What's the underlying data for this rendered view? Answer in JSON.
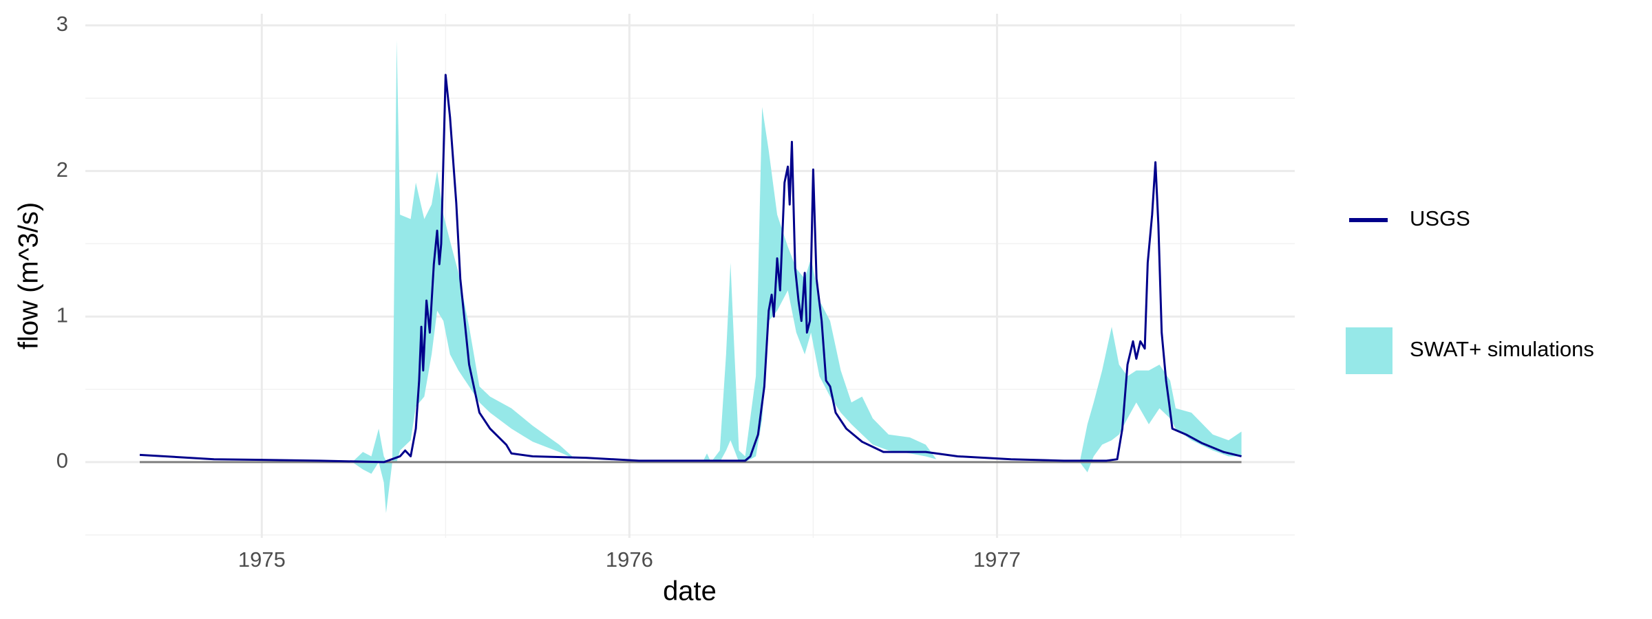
{
  "chart_data": {
    "type": "line",
    "x_label": "date",
    "y_label": "flow (m^3/s)",
    "xlim": [
      1974.52,
      1977.81
    ],
    "ylim": [
      -0.52,
      3.08
    ],
    "xticks": [
      1975,
      1976,
      1977
    ],
    "yticks": [
      0,
      1,
      2,
      3
    ],
    "x_minor_grid": [
      1975.5,
      1976.5,
      1977.5
    ],
    "y_minor_grid": [
      -0.5,
      0.5,
      1.5,
      2.5
    ],
    "grid": true,
    "hline": {
      "value": 0,
      "color": "#7f7f7f"
    },
    "legend": "right",
    "series": [
      {
        "name": "SWAT+ simulations",
        "kind": "ribbon",
        "color": "#96e8e8",
        "x": [
          1974.668,
          1975.246,
          1975.275,
          1975.298,
          1975.318,
          1975.332,
          1975.338,
          1975.355,
          1975.367,
          1975.376,
          1975.405,
          1975.419,
          1975.442,
          1975.462,
          1975.477,
          1975.494,
          1975.512,
          1975.535,
          1975.564,
          1975.592,
          1975.621,
          1975.679,
          1975.737,
          1975.809,
          1975.853,
          1976.199,
          1976.211,
          1976.222,
          1976.246,
          1976.263,
          1976.275,
          1976.286,
          1976.298,
          1976.315,
          1976.344,
          1976.361,
          1976.379,
          1976.402,
          1976.431,
          1976.454,
          1976.477,
          1976.494,
          1976.517,
          1976.546,
          1976.575,
          1976.604,
          1976.633,
          1976.662,
          1976.705,
          1976.763,
          1976.806,
          1976.835,
          1977.225,
          1977.246,
          1977.263,
          1977.286,
          1977.312,
          1977.332,
          1977.355,
          1977.379,
          1977.413,
          1977.442,
          1977.471,
          1977.486,
          1977.529,
          1977.587,
          1977.63,
          1977.665
        ],
        "lower": [
          0,
          0,
          -0.05,
          -0.08,
          0,
          -0.14,
          -0.35,
          0,
          0,
          0.08,
          0.15,
          0.38,
          0.45,
          0.74,
          1.04,
          0.97,
          0.74,
          0.63,
          0.52,
          0.41,
          0.34,
          0.23,
          0.14,
          0.07,
          0.02,
          0,
          0,
          0,
          0,
          0.08,
          0.15,
          0.08,
          0,
          0,
          0.04,
          0.29,
          0.97,
          1.04,
          1.18,
          0.89,
          0.74,
          0.89,
          0.59,
          0.45,
          0.34,
          0.26,
          0.19,
          0.12,
          0.08,
          0.06,
          0.04,
          0.02,
          0,
          -0.07,
          0.04,
          0.12,
          0.15,
          0.19,
          0.3,
          0.41,
          0.26,
          0.37,
          0.3,
          0.23,
          0.15,
          0.08,
          0.04,
          0.04
        ],
        "upper": [
          0,
          0,
          0.07,
          0.04,
          0.23,
          0.04,
          0.01,
          0,
          2.9,
          1.7,
          1.67,
          1.92,
          1.67,
          1.77,
          2.0,
          1.7,
          1.52,
          1.3,
          0.93,
          0.52,
          0.45,
          0.37,
          0.25,
          0.12,
          0.02,
          0,
          0.06,
          0,
          0.08,
          0.74,
          1.37,
          0.74,
          0.08,
          0.04,
          0.59,
          2.44,
          2.14,
          1.7,
          1.48,
          1.33,
          1.26,
          1.4,
          1.11,
          0.97,
          0.63,
          0.41,
          0.45,
          0.3,
          0.19,
          0.17,
          0.12,
          0.02,
          0,
          0.26,
          0.41,
          0.63,
          0.93,
          0.67,
          0.59,
          0.63,
          0.63,
          0.67,
          0.56,
          0.37,
          0.34,
          0.19,
          0.15,
          0.21
        ]
      },
      {
        "name": "USGS",
        "kind": "line",
        "color": "#00008b",
        "x": [
          1974.668,
          1974.87,
          1975.159,
          1975.332,
          1975.376,
          1975.39,
          1975.405,
          1975.419,
          1975.428,
          1975.434,
          1975.439,
          1975.448,
          1975.457,
          1975.468,
          1975.477,
          1975.483,
          1975.488,
          1975.5,
          1975.512,
          1975.529,
          1975.54,
          1975.564,
          1975.592,
          1975.621,
          1975.665,
          1975.679,
          1975.737,
          1975.882,
          1976.026,
          1976.315,
          1976.329,
          1976.35,
          1976.367,
          1976.379,
          1976.387,
          1976.393,
          1976.402,
          1976.41,
          1976.422,
          1976.431,
          1976.436,
          1976.442,
          1976.451,
          1976.46,
          1976.468,
          1976.477,
          1976.483,
          1976.491,
          1976.5,
          1976.509,
          1976.523,
          1976.535,
          1976.546,
          1976.561,
          1976.59,
          1976.633,
          1976.691,
          1976.806,
          1976.893,
          1977.038,
          1977.182,
          1977.298,
          1977.327,
          1977.341,
          1977.355,
          1977.37,
          1977.379,
          1977.39,
          1977.402,
          1977.41,
          1977.422,
          1977.431,
          1977.439,
          1977.448,
          1977.46,
          1977.468,
          1977.477,
          1977.514,
          1977.558,
          1977.616,
          1977.665
        ],
        "values": [
          0.05,
          0.02,
          0.01,
          0,
          0.04,
          0.08,
          0.04,
          0.23,
          0.56,
          0.93,
          0.63,
          1.11,
          0.89,
          1.36,
          1.59,
          1.36,
          1.5,
          2.66,
          2.37,
          1.78,
          1.26,
          0.67,
          0.34,
          0.23,
          0.12,
          0.06,
          0.04,
          0.03,
          0.01,
          0.01,
          0.04,
          0.19,
          0.52,
          1.04,
          1.15,
          1.0,
          1.4,
          1.18,
          1.92,
          2.03,
          1.77,
          2.2,
          1.33,
          1.11,
          0.97,
          1.3,
          0.89,
          0.97,
          2.01,
          1.26,
          0.97,
          0.56,
          0.52,
          0.34,
          0.23,
          0.14,
          0.07,
          0.07,
          0.04,
          0.02,
          0.01,
          0.01,
          0.02,
          0.23,
          0.67,
          0.83,
          0.71,
          0.83,
          0.78,
          1.37,
          1.7,
          2.06,
          1.63,
          0.89,
          0.56,
          0.41,
          0.23,
          0.19,
          0.13,
          0.07,
          0.04
        ]
      }
    ]
  }
}
